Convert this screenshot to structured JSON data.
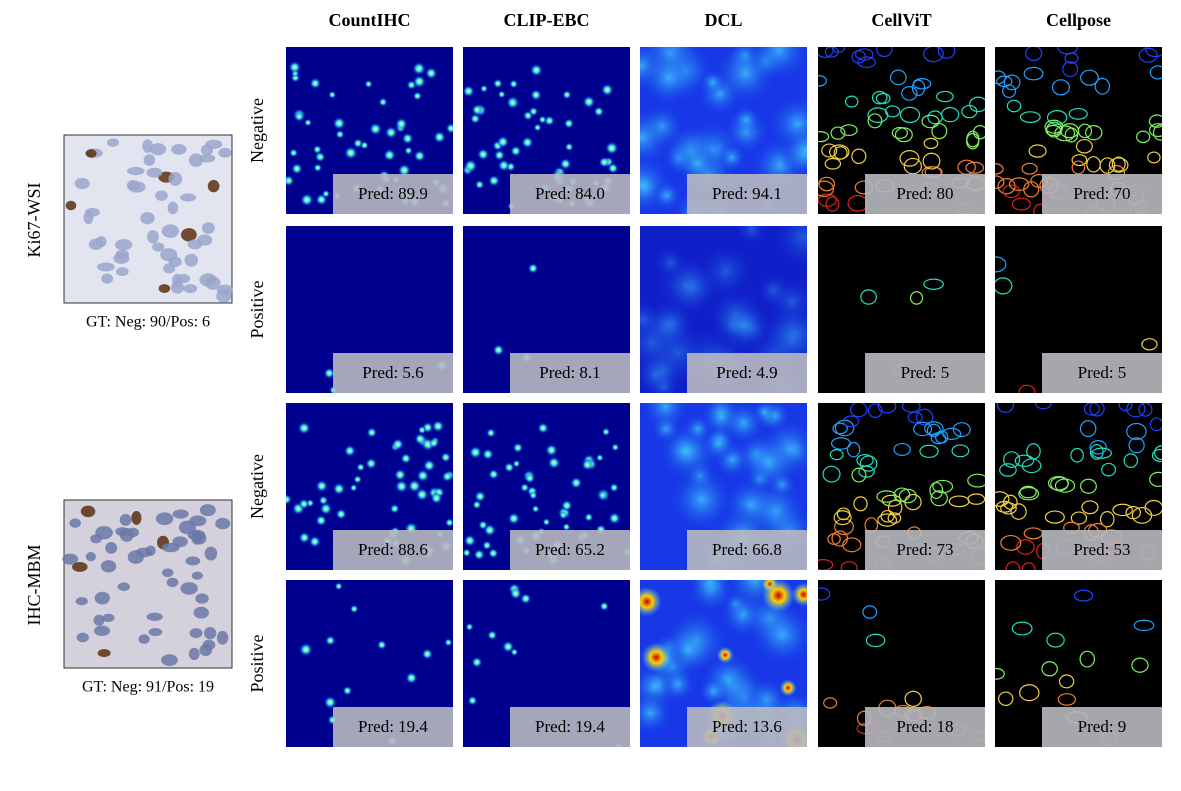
{
  "columns": [
    "CountIHC",
    "CLIP-EBC",
    "DCL",
    "CellViT",
    "Cellpose"
  ],
  "datasets": [
    {
      "name": "Ki67-WSI",
      "caption": "GT: Neg: 90/Pos: 6",
      "rows": [
        {
          "label": "Negative",
          "preds": [
            "Pred: 89.9",
            "Pred: 84.0",
            "Pred: 94.1",
            "Pred: 80",
            "Pred: 70"
          ]
        },
        {
          "label": "Positive",
          "preds": [
            "Pred: 5.6",
            "Pred: 8.1",
            "Pred: 4.9",
            "Pred: 5",
            "Pred: 5"
          ]
        }
      ]
    },
    {
      "name": "IHC-MBM",
      "caption": "GT: Neg: 91/Pos: 19",
      "rows": [
        {
          "label": "Negative",
          "preds": [
            "Pred: 88.6",
            "Pred: 65.2",
            "Pred: 66.8",
            "Pred: 73",
            "Pred: 53"
          ]
        },
        {
          "label": "Positive",
          "preds": [
            "Pred: 19.4",
            "Pred: 19.4",
            "Pred: 13.6",
            "Pred: 18",
            "Pred: 9"
          ]
        }
      ]
    }
  ]
}
